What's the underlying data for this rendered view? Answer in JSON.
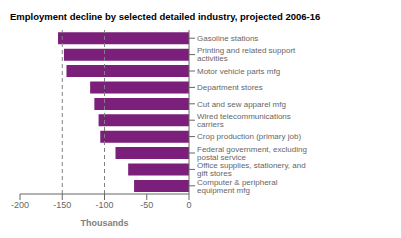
{
  "chart_data": {
    "type": "bar",
    "orientation": "horizontal",
    "title": "Employment decline by selected detailed industry, projected 2006-16",
    "categories": [
      "Computer & peripheral equipment mfg",
      "Office supplies, stationery, and gift stores",
      "Federal government, excluding postal service",
      "Crop production (primary job)",
      "Wired telecommunications carriers",
      "Cut and sew apparel mfg",
      "Department stores",
      "Motor vehicle parts mfg",
      "Printing and related support activities",
      "Gasoline stations"
    ],
    "values": [
      -65,
      -72,
      -87,
      -105,
      -107,
      -112,
      -117,
      -145,
      -148,
      -155
    ],
    "color": "#7B1F7A",
    "xlabel": "Thousands",
    "xlim": [
      -200,
      0
    ],
    "xticks": [
      -200,
      -150,
      -100,
      -50,
      0
    ],
    "reference_lines": [
      -150,
      -100
    ],
    "grid": false
  }
}
